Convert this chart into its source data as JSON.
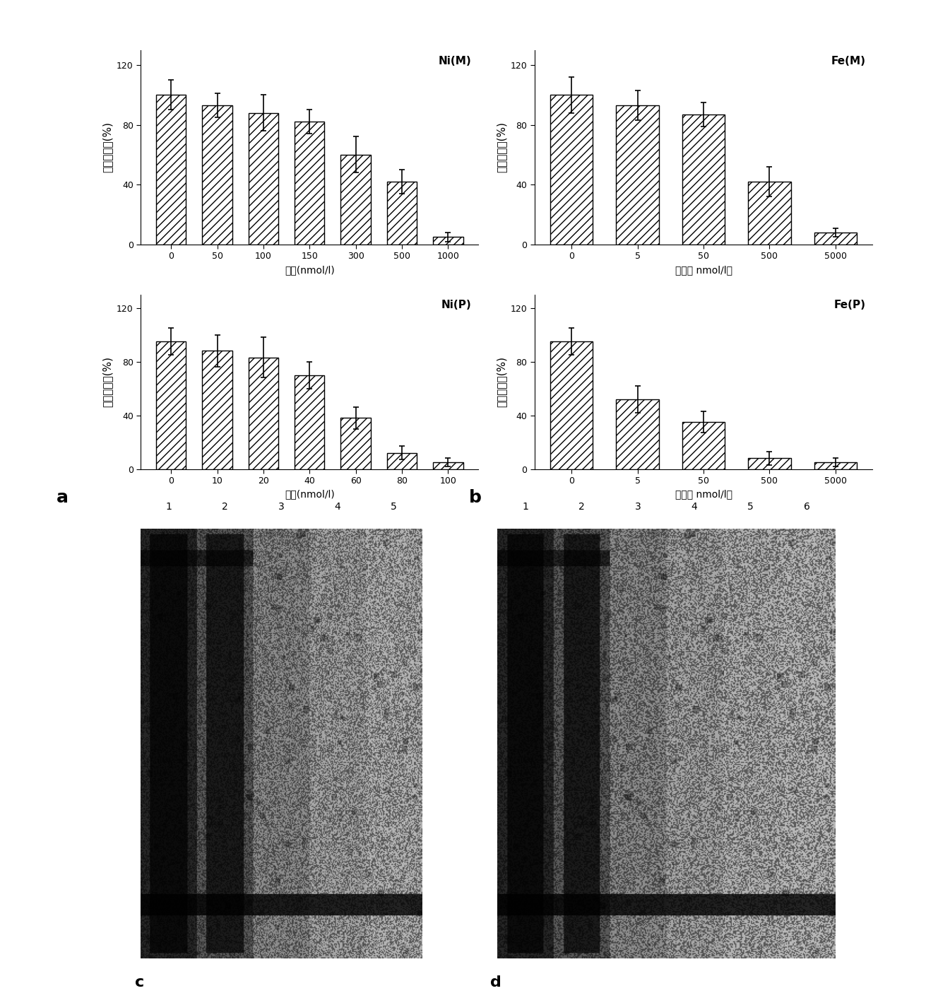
{
  "ni_m_categories": [
    "0",
    "50",
    "100",
    "150",
    "300",
    "500",
    "1000"
  ],
  "ni_m_values": [
    100,
    93,
    88,
    82,
    60,
    42,
    5
  ],
  "ni_m_errors": [
    10,
    8,
    12,
    8,
    12,
    8,
    3
  ],
  "ni_p_categories": [
    "0",
    "10",
    "20",
    "40",
    "60",
    "80",
    "100"
  ],
  "ni_p_values": [
    95,
    88,
    83,
    70,
    38,
    12,
    5
  ],
  "ni_p_errors": [
    10,
    12,
    15,
    10,
    8,
    5,
    3
  ],
  "fe_m_categories": [
    "0",
    "5",
    "50",
    "500",
    "5000"
  ],
  "fe_m_values": [
    100,
    93,
    87,
    42,
    8
  ],
  "fe_m_errors": [
    12,
    10,
    8,
    10,
    3
  ],
  "fe_p_categories": [
    "0",
    "5",
    "50",
    "500",
    "5000"
  ],
  "fe_p_values": [
    95,
    52,
    35,
    8,
    5
  ],
  "fe_p_errors": [
    10,
    10,
    8,
    5,
    3
  ],
  "ylabel": "端粒酶活性(%)",
  "xlabel_a": "浓度(nmol/l)",
  "xlabel_b": "浓度（ nmol/l）",
  "label_ni_m": "Ni(M)",
  "label_ni_p": "Ni(P)",
  "label_fe_m": "Fe(M)",
  "label_fe_p": "Fe(P)",
  "label_a": "a",
  "label_b": "b",
  "label_c": "c",
  "label_d": "d",
  "ylim": [
    0,
    130
  ],
  "yticks": [
    0,
    40,
    80,
    120
  ],
  "bar_color": "white",
  "hatch": "///",
  "background_color": "white",
  "gel_c_lanes": [
    "1",
    "2",
    "3",
    "4",
    "5"
  ],
  "gel_d_lanes": [
    "1",
    "2",
    "3",
    "4",
    "5",
    "6"
  ]
}
